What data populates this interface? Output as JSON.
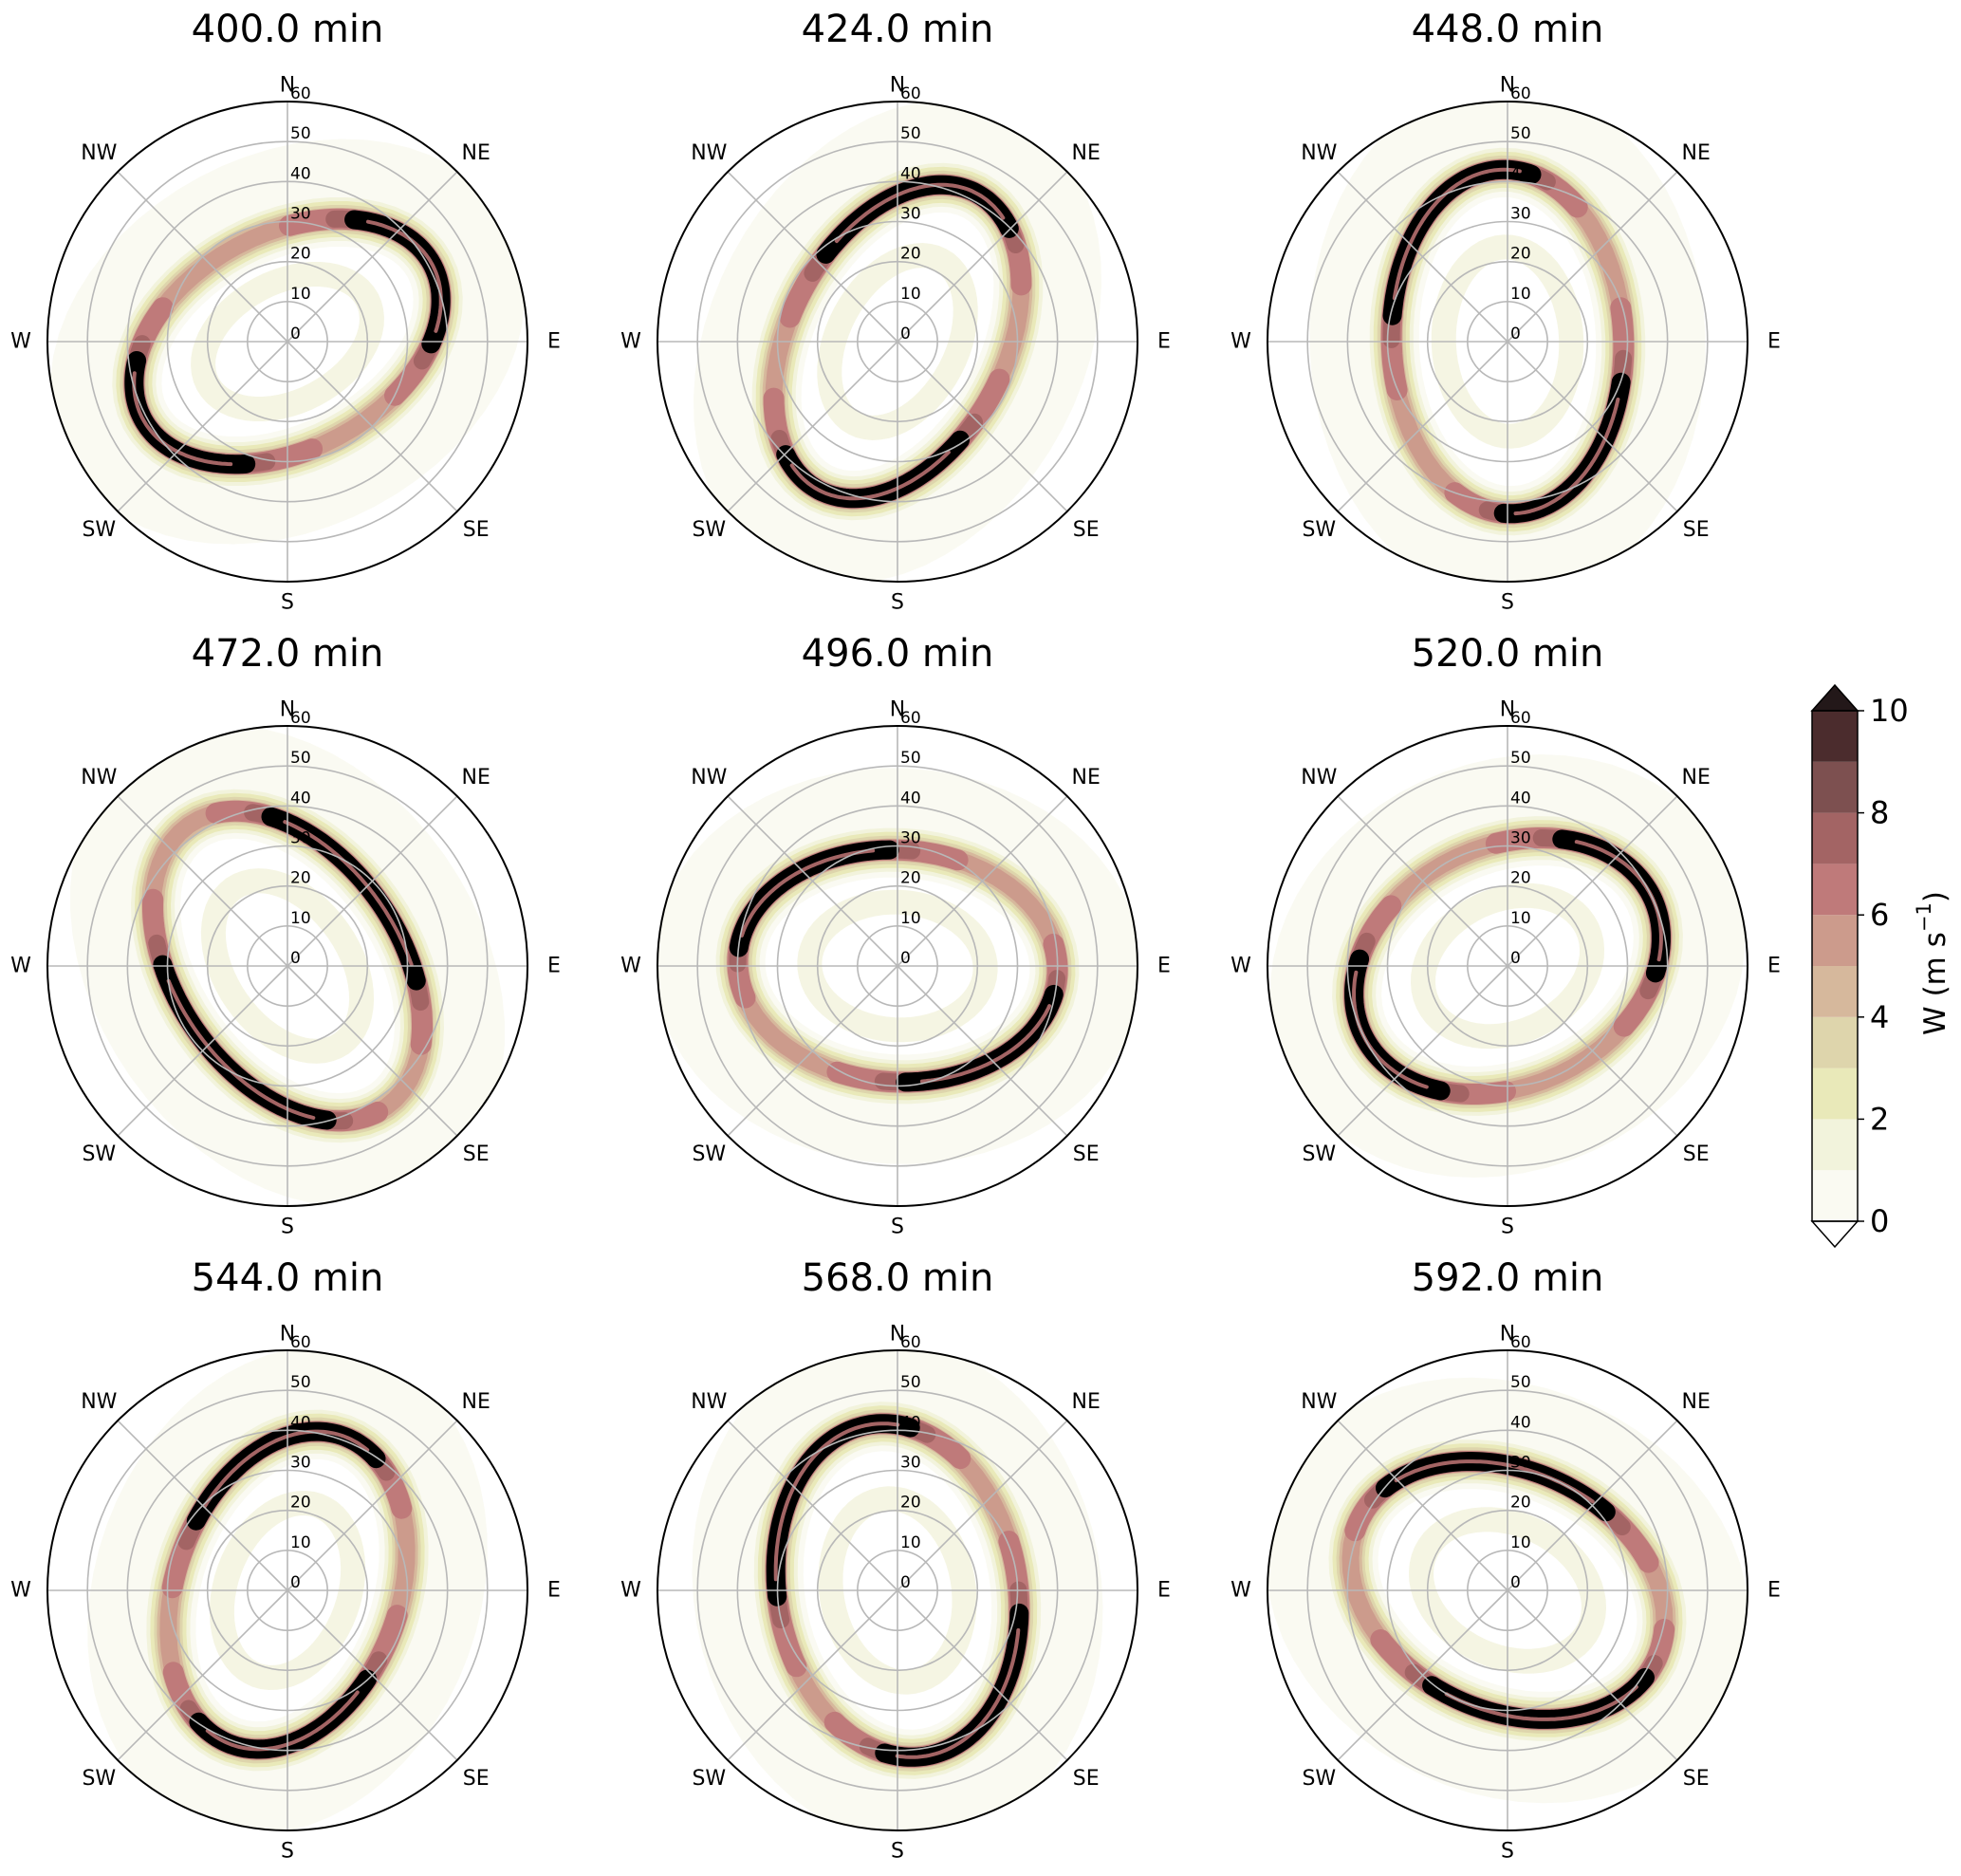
{
  "chart_data": {
    "type": "heatmap",
    "subtype": "polar filled-contour panels",
    "variable": "W",
    "radial_ticks": [
      0,
      10,
      20,
      30,
      40,
      50,
      60
    ],
    "rlim": [
      0,
      60
    ],
    "compass_labels": [
      "N",
      "NE",
      "E",
      "SE",
      "S",
      "SW",
      "W",
      "NW"
    ],
    "colorbar": {
      "label": "W (m s",
      "label_superscript": "−1",
      "label_close": ")",
      "levels": [
        0,
        1,
        2,
        3,
        4,
        5,
        6,
        7,
        8,
        9,
        10
      ],
      "tick_labels": [
        "0",
        "2",
        "4",
        "6",
        "8",
        "10"
      ],
      "tick_values": [
        0,
        2,
        4,
        6,
        8,
        10
      ],
      "extend": "both",
      "colors": [
        "#fafaf2",
        "#f2f3dc",
        "#e9e9b9",
        "#ded5ac",
        "#d6b89c",
        "#cc9b8c",
        "#bf7a7a",
        "#a36464",
        "#7d5050",
        "#4b2c2d"
      ],
      "over_color": "#231819",
      "under_color": "#ffffff"
    },
    "panels": [
      {
        "title": "400.0 min",
        "ellipse_major": 41,
        "ellipse_minor": 27,
        "orientation_deg": 28,
        "max_band_arcs": [
          [
            150,
            235
          ],
          [
            -40,
            45
          ]
        ]
      },
      {
        "title": "424.0 min",
        "ellipse_major": 42,
        "ellipse_minor": 27,
        "orientation_deg": 62,
        "max_band_arcs": [
          [
            -25,
            75
          ],
          [
            155,
            250
          ]
        ]
      },
      {
        "title": "448.0 min",
        "ellipse_major": 43,
        "ellipse_minor": 29,
        "orientation_deg": 92,
        "max_band_arcs": [
          [
            -15,
            80
          ],
          [
            175,
            255
          ]
        ]
      },
      {
        "title": "472.0 min",
        "ellipse_major": 43,
        "ellipse_minor": 28,
        "orientation_deg": -55,
        "max_band_arcs": [
          [
            60,
            140
          ],
          [
            -115,
            -30
          ]
        ]
      },
      {
        "title": "496.0 min",
        "ellipse_major": 40,
        "ellipse_minor": 29,
        "orientation_deg": -3,
        "max_band_arcs": [
          [
            95,
            175
          ],
          [
            -85,
            -10
          ]
        ]
      },
      {
        "title": "520.0 min",
        "ellipse_major": 40,
        "ellipse_minor": 30,
        "orientation_deg": 25,
        "max_band_arcs": [
          [
            145,
            225
          ],
          [
            -35,
            50
          ]
        ]
      },
      {
        "title": "544.0 min",
        "ellipse_major": 41,
        "ellipse_minor": 28,
        "orientation_deg": 70,
        "max_band_arcs": [
          [
            -20,
            78
          ],
          [
            160,
            250
          ]
        ]
      },
      {
        "title": "568.0 min",
        "ellipse_major": 42,
        "ellipse_minor": 30,
        "orientation_deg": 100,
        "max_band_arcs": [
          [
            -20,
            85
          ],
          [
            160,
            255
          ]
        ]
      },
      {
        "title": "592.0 min",
        "ellipse_major": 41,
        "ellipse_minor": 30,
        "orientation_deg": -25,
        "max_band_arcs": [
          [
            70,
            160
          ],
          [
            -100,
            -10
          ]
        ]
      }
    ]
  }
}
